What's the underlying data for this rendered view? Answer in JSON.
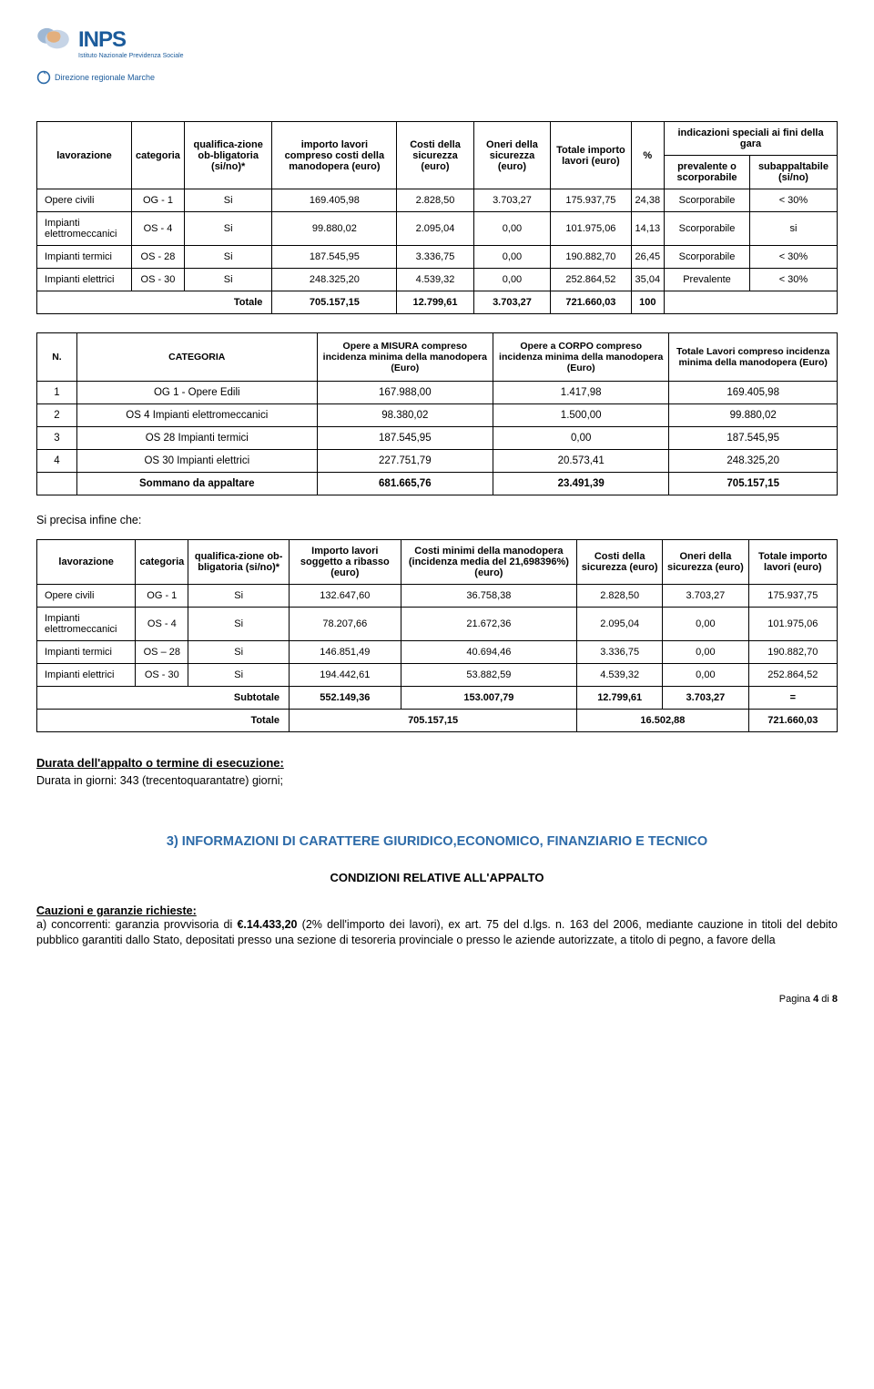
{
  "logo": {
    "name": "INPS",
    "subtitle": "Istituto Nazionale Previdenza Sociale",
    "department": "Direzione regionale Marche"
  },
  "t1": {
    "headers": [
      "lavorazione",
      "categoria",
      "qualifica-zione ob-bligatoria (si/no)*",
      "importo lavori compreso costi della manodopera (euro)",
      "Costi della sicurezza (euro)",
      "Oneri della sicurezza (euro)",
      "Totale importo lavori (euro)",
      "%",
      "indicazioni speciali ai fini della gara"
    ],
    "subheaders": [
      "prevalente o scorporabile",
      "subappaltabile (si/no)"
    ],
    "rows": [
      {
        "lav": "Opere civili",
        "cat": "OG - 1",
        "q": "Si",
        "imp": "169.405,98",
        "costi": "2.828,50",
        "oneri": "3.703,27",
        "tot": "175.937,75",
        "pct": "24,38",
        "prev": "Scorporabile",
        "sub": "< 30%"
      },
      {
        "lav": "Impianti elettromeccanici",
        "cat": "OS - 4",
        "q": "Si",
        "imp": "99.880,02",
        "costi": "2.095,04",
        "oneri": "0,00",
        "tot": "101.975,06",
        "pct": "14,13",
        "prev": "Scorporabile",
        "sub": "si"
      },
      {
        "lav": "Impianti termici",
        "cat": "OS - 28",
        "q": "Si",
        "imp": "187.545,95",
        "costi": "3.336,75",
        "oneri": "0,00",
        "tot": "190.882,70",
        "pct": "26,45",
        "prev": "Scorporabile",
        "sub": "< 30%"
      },
      {
        "lav": "Impianti elettrici",
        "cat": "OS - 30",
        "q": "Si",
        "imp": "248.325,20",
        "costi": "4.539,32",
        "oneri": "0,00",
        "tot": "252.864,52",
        "pct": "35,04",
        "prev": "Prevalente",
        "sub": "< 30%"
      }
    ],
    "total": {
      "label": "Totale",
      "imp": "705.157,15",
      "costi": "12.799,61",
      "oneri": "3.703,27",
      "tot": "721.660,03",
      "pct": "100"
    }
  },
  "t2": {
    "headers": [
      "N.",
      "CATEGORIA",
      "Opere a MISURA compreso incidenza minima della manodopera (Euro)",
      "Opere a CORPO compreso incidenza minima della manodopera (Euro)",
      "Totale Lavori compreso incidenza minima della manodopera (Euro)"
    ],
    "rows": [
      {
        "n": "1",
        "cat": "OG 1 - Opere Edili",
        "mis": "167.988,00",
        "corpo": "1.417,98",
        "tot": "169.405,98"
      },
      {
        "n": "2",
        "cat": "OS 4 Impianti elettromeccanici",
        "mis": "98.380,02",
        "corpo": "1.500,00",
        "tot": "99.880,02"
      },
      {
        "n": "3",
        "cat": "OS 28 Impianti termici",
        "mis": "187.545,95",
        "corpo": "0,00",
        "tot": "187.545,95"
      },
      {
        "n": "4",
        "cat": "OS 30 Impianti elettrici",
        "mis": "227.751,79",
        "corpo": "20.573,41",
        "tot": "248.325,20"
      }
    ],
    "sum": {
      "label": "Sommano da appaltare",
      "mis": "681.665,76",
      "corpo": "23.491,39",
      "tot": "705.157,15"
    }
  },
  "note_precisa": "Si precisa  infine  che:",
  "t3": {
    "headers": [
      "lavorazione",
      "categoria",
      "qualifica-zione ob-bligatoria (si/no)*",
      "Importo lavori soggetto a ribasso (euro)",
      "Costi minimi della manodopera (incidenza media del 21,698396%) (euro)",
      "Costi della sicurezza (euro)",
      "Oneri della sicurezza (euro)",
      "Totale importo lavori (euro)"
    ],
    "rows": [
      {
        "lav": "Opere civili",
        "cat": "OG - 1",
        "q": "Si",
        "rib": "132.647,60",
        "man": "36.758,38",
        "costi": "2.828,50",
        "oneri": "3.703,27",
        "tot": "175.937,75"
      },
      {
        "lav": "Impianti elettromeccanici",
        "cat": "OS - 4",
        "q": "Si",
        "rib": "78.207,66",
        "man": "21.672,36",
        "costi": "2.095,04",
        "oneri": "0,00",
        "tot": "101.975,06"
      },
      {
        "lav": "Impianti termici",
        "cat": "OS – 28",
        "q": "Si",
        "rib": "146.851,49",
        "man": "40.694,46",
        "costi": "3.336,75",
        "oneri": "0,00",
        "tot": "190.882,70"
      },
      {
        "lav": "Impianti elettrici",
        "cat": "OS - 30",
        "q": "Si",
        "rib": "194.442,61",
        "man": "53.882,59",
        "costi": "4.539,32",
        "oneri": "0,00",
        "tot": "252.864,52"
      }
    ],
    "subt": {
      "label": "Subtotale",
      "rib": "552.149,36",
      "man": "153.007,79",
      "costi": "12.799,61",
      "oneri": "3.703,27",
      "tot": "="
    },
    "tot": {
      "label": "Totale",
      "rib_man": "705.157,15",
      "costi_oneri": "16.502,88",
      "tot": "721.660,03"
    }
  },
  "durata": {
    "h": "Durata dell'appalto o termine di esecuzione:",
    "txt": "Durata in giorni:  343 (trecentoquarantatre)  giorni;"
  },
  "h3": "3)   INFORMAZIONI DI CARATTERE GIURIDICO,ECONOMICO, FINANZIARIO E TECNICO",
  "cond": "CONDIZIONI RELATIVE ALL'APPALTO",
  "cauzioni": {
    "h": " Cauzioni e garanzie richieste:",
    "txt": "a) concorrenti: garanzia provvisoria di €.14.433,20 (2% dell'importo dei lavori), ex art. 75 del d.lgs. n. 163 del 2006, mediante cauzione in titoli del debito pubblico garantiti dallo Stato, depositati presso una sezione di tesoreria provinciale o presso le aziende autorizzate, a titolo di pegno, a favore della",
    "bold": "€.14.433,20"
  },
  "pagenum": "Pagina 4 di 8"
}
